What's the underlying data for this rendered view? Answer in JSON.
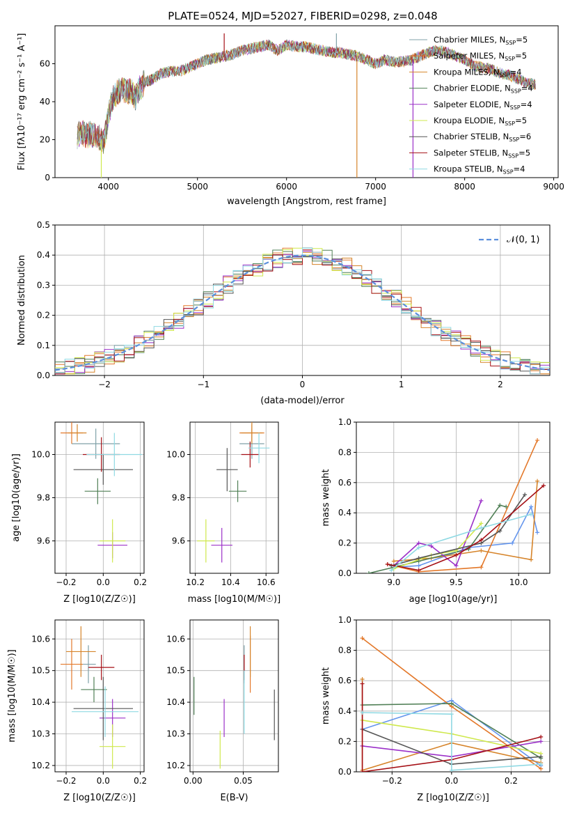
{
  "title": "PLATE=0524, MJD=52027, FIBERID=0298, z=0.048",
  "colors": [
    "#6495ed",
    "#e3782a",
    "#d6842a",
    "#4f7f55",
    "#9b30c8",
    "#cfe84c",
    "#555555",
    "#a50f15",
    "#8fd9e3"
  ],
  "series_order": [
    "Chabrier MILES",
    "Salpeter MILES",
    "Kroupa MILES",
    "Chabrier ELODIE",
    "Salpeter ELODIE",
    "Kroupa ELODIE",
    "Chabrier STELIB",
    "Salpeter STELIB",
    "Kroupa STELIB"
  ],
  "series_colors": [
    "#7fa1a8",
    "#e3782a",
    "#d6842a",
    "#4f7f55",
    "#9b30c8",
    "#cfe84c",
    "#555555",
    "#a50f15",
    "#8fd9e3"
  ],
  "chart_data": [
    {
      "id": "spectrum",
      "type": "line",
      "title": "PLATE=0524, MJD=52027, FIBERID=0298, z=0.048",
      "xlabel": "wavelength [Angstrom, rest frame]",
      "ylabel": "Flux [fλ10⁻¹⁷ erg cm⁻² s⁻¹ A⁻¹]",
      "xlim": [
        3400,
        9050
      ],
      "ylim": [
        0,
        80
      ],
      "xticks": [
        4000,
        5000,
        6000,
        7000,
        8000,
        9000
      ],
      "yticks": [
        0,
        20,
        40,
        60
      ],
      "legend_position": "top-right",
      "legend": [
        {
          "name": "Chabrier MILES",
          "nssp": "5"
        },
        {
          "name": "Salpeter MILES",
          "nssp": "5"
        },
        {
          "name": "Kroupa MILES",
          "nssp": "4"
        },
        {
          "name": "Chabrier ELODIE",
          "nssp": "4"
        },
        {
          "name": "Salpeter ELODIE",
          "nssp": "4"
        },
        {
          "name": "Kroupa ELODIE",
          "nssp": "5"
        },
        {
          "name": "Chabrier STELIB",
          "nssp": "6"
        },
        {
          "name": "Salpeter STELIB",
          "nssp": "5"
        },
        {
          "name": "Kroupa STELIB",
          "nssp": "4"
        }
      ],
      "continuum": [
        [
          3650,
          22
        ],
        [
          3700,
          24
        ],
        [
          3750,
          22
        ],
        [
          3800,
          23
        ],
        [
          3850,
          22
        ],
        [
          3900,
          21
        ],
        [
          3950,
          19
        ],
        [
          4000,
          33
        ],
        [
          4050,
          42
        ],
        [
          4100,
          45
        ],
        [
          4150,
          46
        ],
        [
          4200,
          45
        ],
        [
          4250,
          46
        ],
        [
          4300,
          42
        ],
        [
          4350,
          47
        ],
        [
          4400,
          50
        ],
        [
          4500,
          52
        ],
        [
          4600,
          55
        ],
        [
          4700,
          56
        ],
        [
          4800,
          56
        ],
        [
          4900,
          58
        ],
        [
          5000,
          60
        ],
        [
          5100,
          62
        ],
        [
          5200,
          63
        ],
        [
          5300,
          64
        ],
        [
          5400,
          65
        ],
        [
          5500,
          67
        ],
        [
          5600,
          68
        ],
        [
          5700,
          69
        ],
        [
          5800,
          70
        ],
        [
          5900,
          67
        ],
        [
          6000,
          70
        ],
        [
          6100,
          69
        ],
        [
          6200,
          69
        ],
        [
          6300,
          68
        ],
        [
          6400,
          67
        ],
        [
          6500,
          66
        ],
        [
          6600,
          66
        ],
        [
          6700,
          65
        ],
        [
          6800,
          64
        ],
        [
          6900,
          62
        ],
        [
          7000,
          60
        ],
        [
          7100,
          62
        ],
        [
          7200,
          61
        ],
        [
          7300,
          61
        ],
        [
          7400,
          62
        ],
        [
          7500,
          64
        ],
        [
          7600,
          66
        ],
        [
          7700,
          67
        ],
        [
          7800,
          66
        ],
        [
          7900,
          64
        ],
        [
          8000,
          62
        ],
        [
          8100,
          59
        ],
        [
          8200,
          58
        ],
        [
          8300,
          57
        ],
        [
          8400,
          55
        ],
        [
          8500,
          54
        ],
        [
          8600,
          52
        ],
        [
          8700,
          50
        ],
        [
          8800,
          49
        ]
      ],
      "spikes": [
        {
          "x": 3920,
          "y": 0
        },
        {
          "x": 5300,
          "y": 76
        },
        {
          "x": 6560,
          "y": 76
        },
        {
          "x": 6790,
          "y": 0
        },
        {
          "x": 7420,
          "y": 0
        }
      ]
    },
    {
      "id": "residuals",
      "type": "histogram",
      "xlabel": "(data-model)/error",
      "ylabel": "Normed distribution",
      "xlim": [
        -2.5,
        2.5
      ],
      "ylim": [
        0,
        0.5
      ],
      "xticks": [
        -2,
        -1,
        0,
        1,
        2
      ],
      "yticks": [
        0.0,
        0.1,
        0.2,
        0.3,
        0.4,
        0.5
      ],
      "bin_width": 0.1,
      "curve": {
        "name": "N(0,1)",
        "mean": 0,
        "sigma": 1
      },
      "legend_position": "top-right",
      "grid": true
    },
    {
      "id": "age_vs_Z",
      "type": "scatter",
      "xlabel": "Z [log10(Z/Z☉)]",
      "ylabel": "age  [log10(age/yr)]",
      "xlim": [
        -0.26,
        0.22
      ],
      "ylim": [
        9.45,
        10.15
      ],
      "xticks": [
        -0.2,
        0.0,
        0.2
      ],
      "yticks": [
        9.6,
        9.8,
        10.0
      ],
      "grid": true,
      "points": [
        {
          "x": -0.04,
          "y": 10.05,
          "xerr": 0.13,
          "yerr": 0.07
        },
        {
          "x": -0.17,
          "y": 10.1,
          "xerr": 0.06,
          "yerr": 0.05
        },
        {
          "x": -0.14,
          "y": 10.1,
          "xerr": 0.05,
          "yerr": 0.04
        },
        {
          "x": -0.03,
          "y": 9.83,
          "xerr": 0.07,
          "yerr": 0.06
        },
        {
          "x": 0.05,
          "y": 9.58,
          "xerr": 0.08,
          "yerr": 0.06
        },
        {
          "x": 0.05,
          "y": 9.6,
          "xerr": 0.07,
          "yerr": 0.1
        },
        {
          "x": 0.0,
          "y": 9.93,
          "xerr": 0.16,
          "yerr": 0.07
        },
        {
          "x": -0.01,
          "y": 10.0,
          "xerr": 0.1,
          "yerr": 0.08
        },
        {
          "x": 0.06,
          "y": 10.0,
          "xerr": 0.15,
          "yerr": 0.1
        }
      ]
    },
    {
      "id": "age_vs_mass",
      "type": "scatter",
      "xlabel": "mass [log10(M/M☉)]",
      "ylabel": "",
      "xlim": [
        10.17,
        10.67
      ],
      "ylim": [
        9.45,
        10.15
      ],
      "xticks": [
        10.2,
        10.4,
        10.6
      ],
      "yticks": [
        9.6,
        9.8,
        10.0
      ],
      "grid": true,
      "points": [
        {
          "x": 10.52,
          "y": 10.05,
          "xerr": 0.07,
          "yerr": 0.07
        },
        {
          "x": 10.52,
          "y": 10.1,
          "xerr": 0.07,
          "yerr": 0.04
        },
        {
          "x": 10.52,
          "y": 10.1,
          "xerr": 0.06,
          "yerr": 0.05
        },
        {
          "x": 10.44,
          "y": 9.83,
          "xerr": 0.05,
          "yerr": 0.05
        },
        {
          "x": 10.35,
          "y": 9.58,
          "xerr": 0.06,
          "yerr": 0.08
        },
        {
          "x": 10.26,
          "y": 9.6,
          "xerr": 0.05,
          "yerr": 0.1
        },
        {
          "x": 10.38,
          "y": 9.93,
          "xerr": 0.06,
          "yerr": 0.1
        },
        {
          "x": 10.51,
          "y": 10.0,
          "xerr": 0.05,
          "yerr": 0.06
        },
        {
          "x": 10.56,
          "y": 10.03,
          "xerr": 0.06,
          "yerr": 0.07
        }
      ]
    },
    {
      "id": "massweight_vs_age",
      "type": "line",
      "xlabel": "age  [log10(age/yr)]",
      "ylabel": "mass weight",
      "xlim": [
        8.7,
        10.25
      ],
      "ylim": [
        0.0,
        1.0
      ],
      "xticks": [
        9.0,
        9.5,
        10.0
      ],
      "yticks": [
        0.0,
        0.2,
        0.4,
        0.6,
        0.8,
        1.0
      ],
      "grid": true,
      "series": [
        {
          "x": [
            9.0,
            9.2,
            9.6,
            9.95,
            10.1,
            10.15
          ],
          "y": [
            0.04,
            0.05,
            0.17,
            0.2,
            0.44,
            0.27
          ]
        },
        {
          "x": [
            8.95,
            9.2,
            9.7,
            10.15
          ],
          "y": [
            0.06,
            0.01,
            0.04,
            0.88
          ]
        },
        {
          "x": [
            9.0,
            9.3,
            9.7,
            10.1,
            10.15
          ],
          "y": [
            0.08,
            0.1,
            0.15,
            0.09,
            0.61
          ]
        },
        {
          "x": [
            8.8,
            9.2,
            9.6,
            9.85,
            9.9
          ],
          "y": [
            0.0,
            0.08,
            0.16,
            0.45,
            0.44
          ]
        },
        {
          "x": [
            9.0,
            9.2,
            9.3,
            9.5,
            9.7
          ],
          "y": [
            0.05,
            0.2,
            0.18,
            0.05,
            0.48
          ]
        },
        {
          "x": [
            9.0,
            9.3,
            9.5,
            9.7
          ],
          "y": [
            0.03,
            0.12,
            0.15,
            0.33
          ]
        },
        {
          "x": [
            8.98,
            9.2,
            9.7,
            9.85,
            10.05
          ],
          "y": [
            0.05,
            0.1,
            0.2,
            0.28,
            0.52
          ]
        },
        {
          "x": [
            8.95,
            9.2,
            9.5,
            9.7,
            10.2
          ],
          "y": [
            0.06,
            0.02,
            0.12,
            0.22,
            0.58
          ]
        },
        {
          "x": [
            8.98,
            9.2,
            9.7,
            10.1
          ],
          "y": [
            0.02,
            0.17,
            0.3,
            0.39
          ]
        }
      ]
    },
    {
      "id": "mass_vs_Z",
      "type": "scatter",
      "xlabel": "Z [log10(Z/Z☉)]",
      "ylabel": "mass [log10(M/M☉)]",
      "xlim": [
        -0.26,
        0.22
      ],
      "ylim": [
        10.18,
        10.66
      ],
      "xticks": [
        -0.2,
        0.0,
        0.2
      ],
      "yticks": [
        10.2,
        10.3,
        10.4,
        10.5,
        10.6
      ],
      "grid": true,
      "points": [
        {
          "x": -0.08,
          "y": 10.52,
          "xerr": 0.04,
          "yerr": 0.06
        },
        {
          "x": -0.17,
          "y": 10.52,
          "xerr": 0.06,
          "yerr": 0.08
        },
        {
          "x": -0.12,
          "y": 10.56,
          "xerr": 0.08,
          "yerr": 0.08
        },
        {
          "x": -0.05,
          "y": 10.44,
          "xerr": 0.07,
          "yerr": 0.04
        },
        {
          "x": 0.05,
          "y": 10.35,
          "xerr": 0.07,
          "yerr": 0.06
        },
        {
          "x": 0.05,
          "y": 10.26,
          "xerr": 0.07,
          "yerr": 0.07
        },
        {
          "x": 0.0,
          "y": 10.38,
          "xerr": 0.16,
          "yerr": 0.1
        },
        {
          "x": -0.01,
          "y": 10.51,
          "xerr": 0.07,
          "yerr": 0.04
        },
        {
          "x": 0.01,
          "y": 10.37,
          "xerr": 0.18,
          "yerr": 0.08
        }
      ]
    },
    {
      "id": "mass_vs_ebv",
      "type": "scatter",
      "xlabel": "E(B-V)",
      "ylabel": "",
      "xlim": [
        -0.003,
        0.085
      ],
      "ylim": [
        10.18,
        10.66
      ],
      "xticks": [
        0.0,
        0.05
      ],
      "yticks": [
        10.2,
        10.3,
        10.4,
        10.5,
        10.6
      ],
      "grid": true,
      "points": [
        {
          "x": 0.051,
          "y": 10.52,
          "xerr": 0.0,
          "yerr": 0.06
        },
        {
          "x": 0.057,
          "y": 10.52,
          "xerr": 0.0,
          "yerr": 0.09
        },
        {
          "x": 0.057,
          "y": 10.56,
          "xerr": 0.0,
          "yerr": 0.08
        },
        {
          "x": 0.001,
          "y": 10.42,
          "xerr": 0.0,
          "yerr": 0.06
        },
        {
          "x": 0.031,
          "y": 10.35,
          "xerr": 0.0,
          "yerr": 0.06
        },
        {
          "x": 0.027,
          "y": 10.25,
          "xerr": 0.0,
          "yerr": 0.06
        },
        {
          "x": 0.081,
          "y": 10.36,
          "xerr": 0.0,
          "yerr": 0.08
        },
        {
          "x": 0.051,
          "y": 10.51,
          "xerr": 0.0,
          "yerr": 0.04
        },
        {
          "x": 0.051,
          "y": 10.4,
          "xerr": 0.0,
          "yerr": 0.1
        }
      ]
    },
    {
      "id": "massweight_vs_Z",
      "type": "line",
      "xlabel": "Z [log10(Z/Z☉)]",
      "ylabel": "mass weight",
      "xlim": [
        -0.32,
        0.33
      ],
      "ylim": [
        0.0,
        1.0
      ],
      "xticks": [
        -0.2,
        0.0,
        0.2
      ],
      "yticks": [
        0.0,
        0.2,
        0.4,
        0.6,
        0.8,
        1.0
      ],
      "grid": true,
      "series": [
        {
          "x": [
            -0.3,
            0.0,
            0.3
          ],
          "y": [
            0.28,
            0.47,
            0.04
          ]
        },
        {
          "x": [
            -0.3,
            0.0,
            0.3
          ],
          "y": [
            0.88,
            0.43,
            0.02
          ]
        },
        {
          "x": [
            -0.3,
            -0.3,
            0.0,
            0.3
          ],
          "y": [
            0.61,
            0.01,
            0.19,
            0.06
          ]
        },
        {
          "x": [
            -0.3,
            0.0,
            0.3
          ],
          "y": [
            0.44,
            0.45,
            0.09
          ]
        },
        {
          "x": [
            -0.3,
            -0.3,
            0.0,
            0.3
          ],
          "y": [
            0.17,
            0.17,
            0.1,
            0.2
          ]
        },
        {
          "x": [
            -0.3,
            0.0,
            0.3
          ],
          "y": [
            0.34,
            0.25,
            0.12
          ]
        },
        {
          "x": [
            -0.3,
            0.0,
            0.3
          ],
          "y": [
            0.28,
            0.05,
            0.1
          ]
        },
        {
          "x": [
            -0.3,
            -0.3,
            0.0,
            0.3
          ],
          "y": [
            0.58,
            0.0,
            0.08,
            0.23
          ]
        },
        {
          "x": [
            -0.3,
            0.0,
            0.0,
            0.3
          ],
          "y": [
            0.39,
            0.38,
            0.01,
            0.05
          ]
        }
      ]
    }
  ]
}
